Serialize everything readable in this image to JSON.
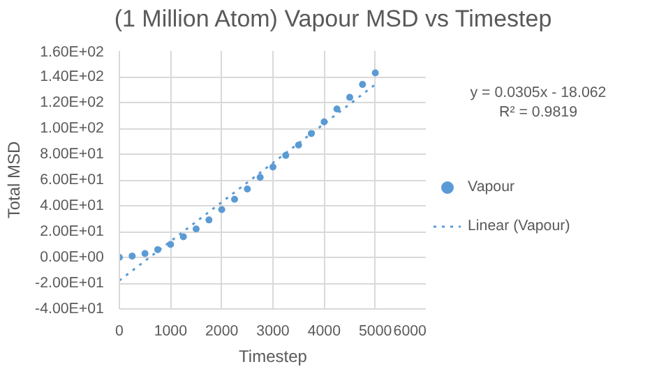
{
  "chart_data": {
    "type": "scatter",
    "title": "(1 Million Atom) Vapour MSD vs Timestep",
    "xlabel": "Timestep",
    "ylabel": "Total MSD",
    "annotations": [
      "y = 0.0305x - 18.062",
      "R² = 0.9819"
    ],
    "series": [
      {
        "name": "Vapour",
        "color": "#5b9bd5",
        "marker": "circle",
        "x": [
          0,
          250,
          500,
          750,
          1000,
          1250,
          1500,
          1750,
          2000,
          2250,
          2500,
          2750,
          3000,
          3250,
          3500,
          3750,
          4000,
          4250,
          4500,
          4750,
          5000
        ],
        "values": [
          0,
          1,
          3,
          6,
          10,
          16,
          22,
          29,
          37,
          45,
          53,
          62,
          70,
          79,
          87,
          96,
          105,
          115,
          124,
          134,
          143
        ]
      },
      {
        "name": "Linear (Vapour)",
        "type": "line",
        "line_style": "dotted",
        "color": "#5b9bd5",
        "x": [
          0,
          5000
        ],
        "values": [
          -18,
          134
        ]
      }
    ],
    "xlim": [
      0,
      6000
    ],
    "xticks": [
      0,
      1000,
      2000,
      3000,
      4000,
      5000,
      6000
    ],
    "ylim": [
      -40,
      160
    ],
    "yticks": [
      {
        "value": -40,
        "label": "-4.00E+01"
      },
      {
        "value": -20,
        "label": "-2.00E+01"
      },
      {
        "value": 0,
        "label": "0.00E+00"
      },
      {
        "value": 20,
        "label": "2.00E+01"
      },
      {
        "value": 40,
        "label": "4.00E+01"
      },
      {
        "value": 60,
        "label": "6.00E+01"
      },
      {
        "value": 80,
        "label": "8.00E+01"
      },
      {
        "value": 100,
        "label": "1.00E+02"
      },
      {
        "value": 120,
        "label": "1.20E+02"
      },
      {
        "value": 140,
        "label": "1.40E+02"
      },
      {
        "value": 160,
        "label": "1.60E+02"
      }
    ],
    "grid": true,
    "legend": "right"
  }
}
